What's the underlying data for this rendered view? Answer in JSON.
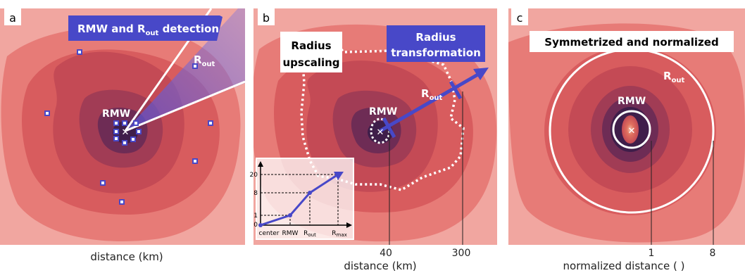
{
  "panels": [
    {
      "letter": "a",
      "banner": "RMW and R",
      "banner_sub": "out",
      "banner_tail": " detection",
      "rmw_label": "RMW",
      "rout_label": "R",
      "rout_sub": "out",
      "xlabel": "distance (km)"
    },
    {
      "letter": "b",
      "upscale_line1": "Radius",
      "upscale_line2": "upscaling",
      "transform_line1": "Radius",
      "transform_line2": "transformation",
      "rmw_label": "RMW",
      "rout_label": "R",
      "rout_sub": "out",
      "tick_40": "40",
      "tick_300": "300",
      "xlabel": "distance (km)"
    },
    {
      "letter": "c",
      "banner": "Symmetrized and normalized",
      "rmw_label": "RMW",
      "rout_label": "R",
      "rout_sub": "out",
      "tick_1": "1",
      "tick_8": "8",
      "xlabel": "normalized distance ( )"
    }
  ],
  "inset": {
    "y_ticks": [
      "20",
      "8",
      "1",
      "0"
    ],
    "x_ticks": [
      "center",
      "RMW",
      "R",
      "R"
    ],
    "x_tick_subs": [
      "",
      "",
      "out",
      "max"
    ],
    "points": [
      {
        "x": "center",
        "y": 0
      },
      {
        "x": "RMW",
        "y": 1
      },
      {
        "x": "Rout",
        "y": 8
      },
      {
        "x": "Rmax",
        "y": 20
      }
    ]
  },
  "colors": {
    "bg_light": "#f1a6a0",
    "level1": "#e77b77",
    "level2": "#d85c5e",
    "level3": "#c44a55",
    "level4": "#a13c55",
    "level5": "#6e2c55",
    "level6": "#3f1e4a",
    "accent_blue": "#4848c8",
    "white": "#ffffff"
  }
}
